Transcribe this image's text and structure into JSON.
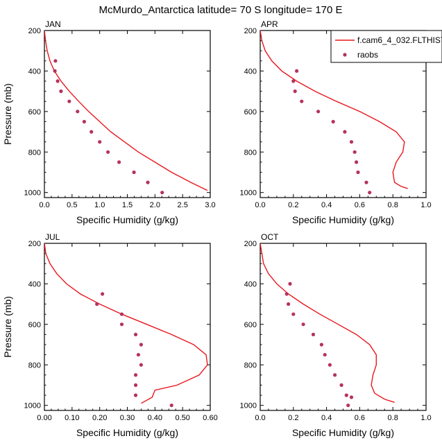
{
  "title": "McMurdo_Antarctica  latitude= 70 S longitude= 170 E",
  "colors": {
    "model": "#e8161d",
    "obs": "#b5325e"
  },
  "legend": {
    "placement": "top-right",
    "entries": [
      {
        "label": "f.cam6_4_032.FLTHIST",
        "marker": "line"
      },
      {
        "label": "raobs",
        "marker": "dot"
      }
    ]
  },
  "chart_data": [
    {
      "type": "line",
      "panel": "JAN",
      "xlabel": "Specific Humidity (g/kg)",
      "ylabel": "Pressure (mb)",
      "xlim": [
        0,
        3.0
      ],
      "ylim": [
        200,
        1025
      ],
      "y_inverted": true,
      "xticks": [
        "0.0",
        "0.5",
        "1.0",
        "1.5",
        "2.0",
        "2.5",
        "3.0"
      ],
      "yticks": [
        "200",
        "400",
        "600",
        "800",
        "1000"
      ],
      "series": [
        {
          "name": "f.cam6_4_032.FLTHIST",
          "kind": "line",
          "x": [
            0.0,
            0.02,
            0.05,
            0.1,
            0.18,
            0.3,
            0.45,
            0.62,
            0.8,
            1.0,
            1.2,
            1.45,
            1.7,
            2.0,
            2.3,
            2.65,
            2.95
          ],
          "y": [
            200,
            250,
            300,
            350,
            400,
            450,
            500,
            550,
            600,
            650,
            700,
            750,
            800,
            850,
            900,
            950,
            990
          ]
        },
        {
          "name": "raobs",
          "kind": "scatter",
          "x": [
            0.2,
            0.19,
            0.24,
            0.3,
            0.45,
            0.6,
            0.72,
            0.85,
            1.0,
            1.15,
            1.35,
            1.62,
            1.87,
            2.13
          ],
          "y": [
            350,
            400,
            450,
            500,
            550,
            600,
            650,
            700,
            750,
            800,
            850,
            900,
            950,
            1000
          ]
        }
      ]
    },
    {
      "type": "line",
      "panel": "APR",
      "xlabel": "Specific Humidity (g/kg)",
      "ylabel": "",
      "xlim": [
        0,
        1.0
      ],
      "ylim": [
        200,
        1025
      ],
      "y_inverted": true,
      "xticks": [
        "0.0",
        "0.2",
        "0.4",
        "0.6",
        "0.8",
        "1.0"
      ],
      "yticks": [
        "200",
        "400",
        "600",
        "800",
        "1000"
      ],
      "series": [
        {
          "name": "f.cam6_4_032.FLTHIST",
          "kind": "line",
          "x": [
            0.0,
            0.01,
            0.03,
            0.07,
            0.13,
            0.22,
            0.33,
            0.46,
            0.6,
            0.72,
            0.82,
            0.87,
            0.86,
            0.82,
            0.8,
            0.81,
            0.85,
            0.89
          ],
          "y": [
            200,
            250,
            300,
            350,
            400,
            450,
            500,
            550,
            600,
            650,
            700,
            750,
            800,
            850,
            900,
            950,
            970,
            980
          ]
        },
        {
          "name": "raobs",
          "kind": "scatter",
          "x": [
            0.22,
            0.2,
            0.21,
            0.25,
            0.35,
            0.44,
            0.51,
            0.55,
            0.57,
            0.58,
            0.59,
            0.64,
            0.66
          ],
          "y": [
            400,
            450,
            500,
            550,
            600,
            650,
            700,
            750,
            800,
            850,
            900,
            950,
            1000
          ]
        }
      ]
    },
    {
      "type": "line",
      "panel": "JUL",
      "xlabel": "Specific Humidity (g/kg)",
      "ylabel": "Pressure (mb)",
      "xlim": [
        0,
        0.6
      ],
      "ylim": [
        200,
        1025
      ],
      "y_inverted": true,
      "xticks": [
        "0.00",
        "0.10",
        "0.20",
        "0.30",
        "0.40",
        "0.50",
        "0.60"
      ],
      "yticks": [
        "200",
        "400",
        "600",
        "800",
        "1000"
      ],
      "series": [
        {
          "name": "f.cam6_4_032.FLTHIST",
          "kind": "line",
          "x": [
            0.0,
            0.005,
            0.02,
            0.045,
            0.08,
            0.13,
            0.2,
            0.28,
            0.37,
            0.46,
            0.54,
            0.585,
            0.59,
            0.56,
            0.48,
            0.4,
            0.39,
            0.35
          ],
          "y": [
            200,
            250,
            300,
            350,
            400,
            450,
            500,
            550,
            600,
            650,
            700,
            750,
            800,
            850,
            900,
            925,
            960,
            990
          ]
        },
        {
          "name": "raobs",
          "kind": "scatter",
          "x": [
            0.21,
            0.19,
            0.28,
            0.28,
            0.33,
            0.35,
            0.34,
            0.35,
            0.33,
            0.33,
            0.33,
            0.46
          ],
          "y": [
            450,
            500,
            550,
            600,
            650,
            700,
            750,
            800,
            850,
            900,
            950,
            1000
          ]
        }
      ]
    },
    {
      "type": "line",
      "panel": "OCT",
      "xlabel": "Specific Humidity (g/kg)",
      "ylabel": "",
      "xlim": [
        0,
        1.0
      ],
      "ylim": [
        200,
        1025
      ],
      "y_inverted": true,
      "xticks": [
        "0.0",
        "0.2",
        "0.4",
        "0.6",
        "0.8",
        "1.0"
      ],
      "yticks": [
        "200",
        "400",
        "600",
        "800",
        "1000"
      ],
      "series": [
        {
          "name": "f.cam6_4_032.FLTHIST",
          "kind": "line",
          "x": [
            0.0,
            0.01,
            0.02,
            0.05,
            0.1,
            0.17,
            0.26,
            0.36,
            0.47,
            0.58,
            0.66,
            0.7,
            0.7,
            0.68,
            0.67,
            0.69,
            0.75,
            0.81
          ],
          "y": [
            200,
            250,
            300,
            350,
            400,
            450,
            500,
            550,
            600,
            650,
            700,
            750,
            800,
            850,
            900,
            940,
            970,
            985
          ]
        },
        {
          "name": "raobs",
          "kind": "scatter",
          "x": [
            0.18,
            0.16,
            0.17,
            0.2,
            0.26,
            0.32,
            0.37,
            0.39,
            0.42,
            0.45,
            0.49,
            0.52,
            0.55,
            0.53
          ],
          "y": [
            400,
            450,
            500,
            550,
            600,
            650,
            700,
            750,
            800,
            850,
            900,
            950,
            960,
            1000
          ]
        }
      ]
    }
  ]
}
